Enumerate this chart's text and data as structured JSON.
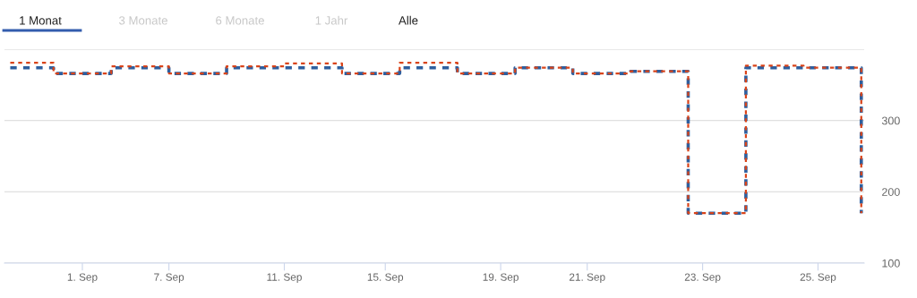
{
  "chart_data": {
    "type": "step",
    "annotations": [
      "1 Monat",
      "3 Monate",
      "6 Monate",
      "1 Jahr",
      "Alle"
    ],
    "categories": [
      null,
      null,
      null,
      null,
      null,
      "1. Sep",
      null,
      null,
      null,
      null,
      null,
      "7. Sep",
      null,
      null,
      null,
      null,
      null,
      null,
      null,
      "11. Sep",
      null,
      null,
      null,
      null,
      null,
      null,
      "15. Sep",
      null,
      null,
      null,
      null,
      null,
      null,
      null,
      "19. Sep",
      null,
      null,
      null,
      null,
      null,
      "21. Sep",
      null,
      null,
      null,
      null,
      null,
      null,
      null,
      "23. Sep",
      null,
      null,
      null,
      null,
      null,
      null,
      null,
      "25. Sep",
      null,
      null,
      null
    ],
    "series": [
      {
        "color": "#2e5f9e",
        "values": [
          374,
          374,
          374,
          366,
          366,
          366,
          366,
          374,
          374,
          374,
          374,
          366,
          366,
          366,
          366,
          374,
          374,
          374,
          374,
          374,
          374,
          374,
          374,
          366,
          366,
          366,
          366,
          374,
          374,
          374,
          374,
          366,
          366,
          366,
          366,
          374,
          374,
          374,
          374,
          366,
          366,
          366,
          366,
          369,
          369,
          369,
          369,
          170,
          170,
          170,
          170,
          374,
          374,
          374,
          374,
          374,
          374,
          374,
          374,
          170
        ]
      },
      {
        "color": "#d9441a",
        "values": [
          381,
          381,
          381,
          366,
          366,
          366,
          366,
          376,
          376,
          376,
          376,
          366,
          366,
          366,
          366,
          376,
          376,
          376,
          376,
          380,
          380,
          380,
          380,
          366,
          366,
          366,
          366,
          381,
          381,
          381,
          381,
          366,
          366,
          366,
          366,
          374,
          374,
          374,
          374,
          366,
          366,
          366,
          366,
          369,
          369,
          369,
          369,
          170,
          170,
          170,
          170,
          377,
          377,
          377,
          377,
          374,
          374,
          374,
          374,
          170
        ]
      }
    ],
    "ylim": [
      100,
      400
    ],
    "yticks": [
      100,
      200,
      300,
      {
        "value": 400,
        "label": null
      }
    ],
    "grid": "y",
    "line_style": "dashed"
  }
}
